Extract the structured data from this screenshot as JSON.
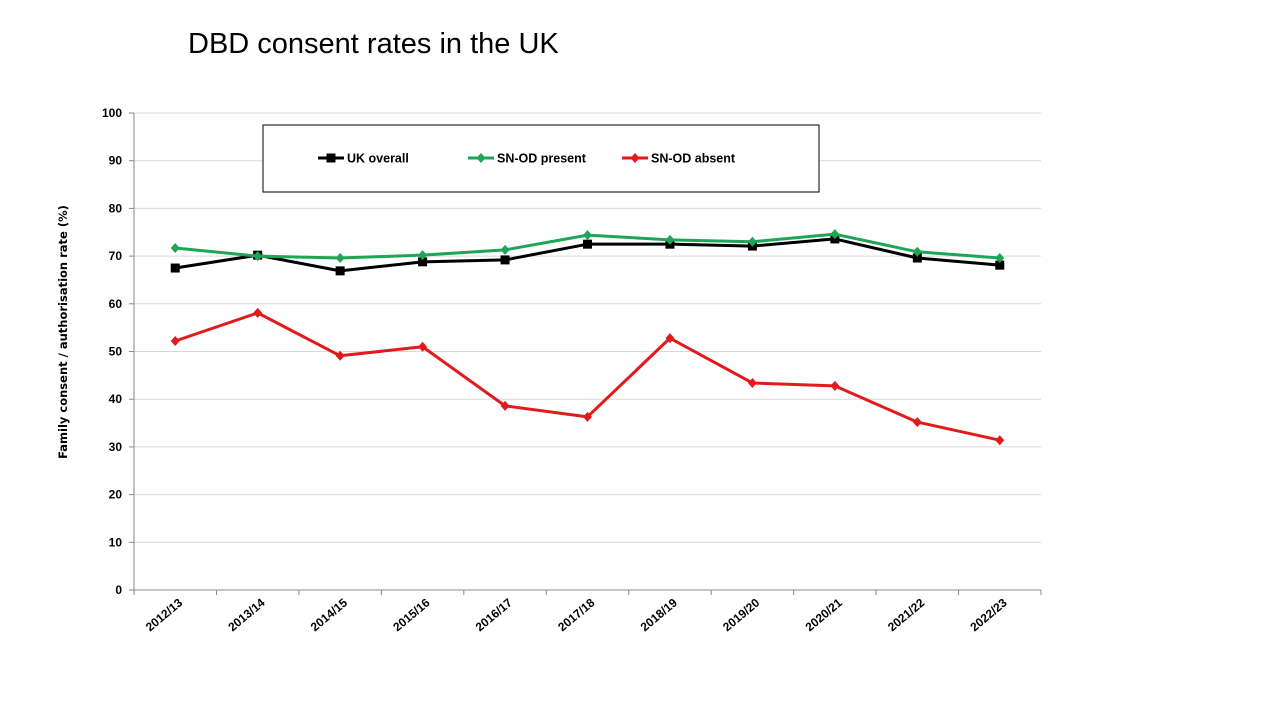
{
  "chart_data": {
    "type": "line",
    "title": "DBD consent rates in the UK",
    "xlabel": "",
    "ylabel": "Family consent / authorisation rate (%)",
    "ylim": [
      0,
      100
    ],
    "yticks": [
      "0",
      "10",
      "20",
      "30",
      "40",
      "50",
      "60",
      "70",
      "80",
      "90",
      "100"
    ],
    "grid": true,
    "legend_position": "top-center",
    "categories": [
      "2012/13",
      "2013/14",
      "2014/15",
      "2015/16",
      "2016/17",
      "2017/18",
      "2018/19",
      "2019/20",
      "2020/21",
      "2021/22",
      "2022/23"
    ],
    "series": [
      {
        "name": "UK overall",
        "color": "#000000",
        "marker": "square",
        "values": [
          67.5,
          70.2,
          66.9,
          68.8,
          69.2,
          72.5,
          72.5,
          72.1,
          73.6,
          69.6,
          68.1
        ]
      },
      {
        "name": "SN-OD present",
        "color": "#1fa556",
        "marker": "diamond",
        "values": [
          71.7,
          70.0,
          69.6,
          70.2,
          71.3,
          74.4,
          73.4,
          73.0,
          74.6,
          70.9,
          69.6
        ]
      },
      {
        "name": "SN-OD absent",
        "color": "#e31a1c",
        "marker": "diamond",
        "values": [
          52.2,
          58.1,
          49.1,
          51.0,
          38.6,
          36.3,
          52.8,
          43.4,
          42.8,
          35.2,
          31.4
        ]
      }
    ]
  }
}
